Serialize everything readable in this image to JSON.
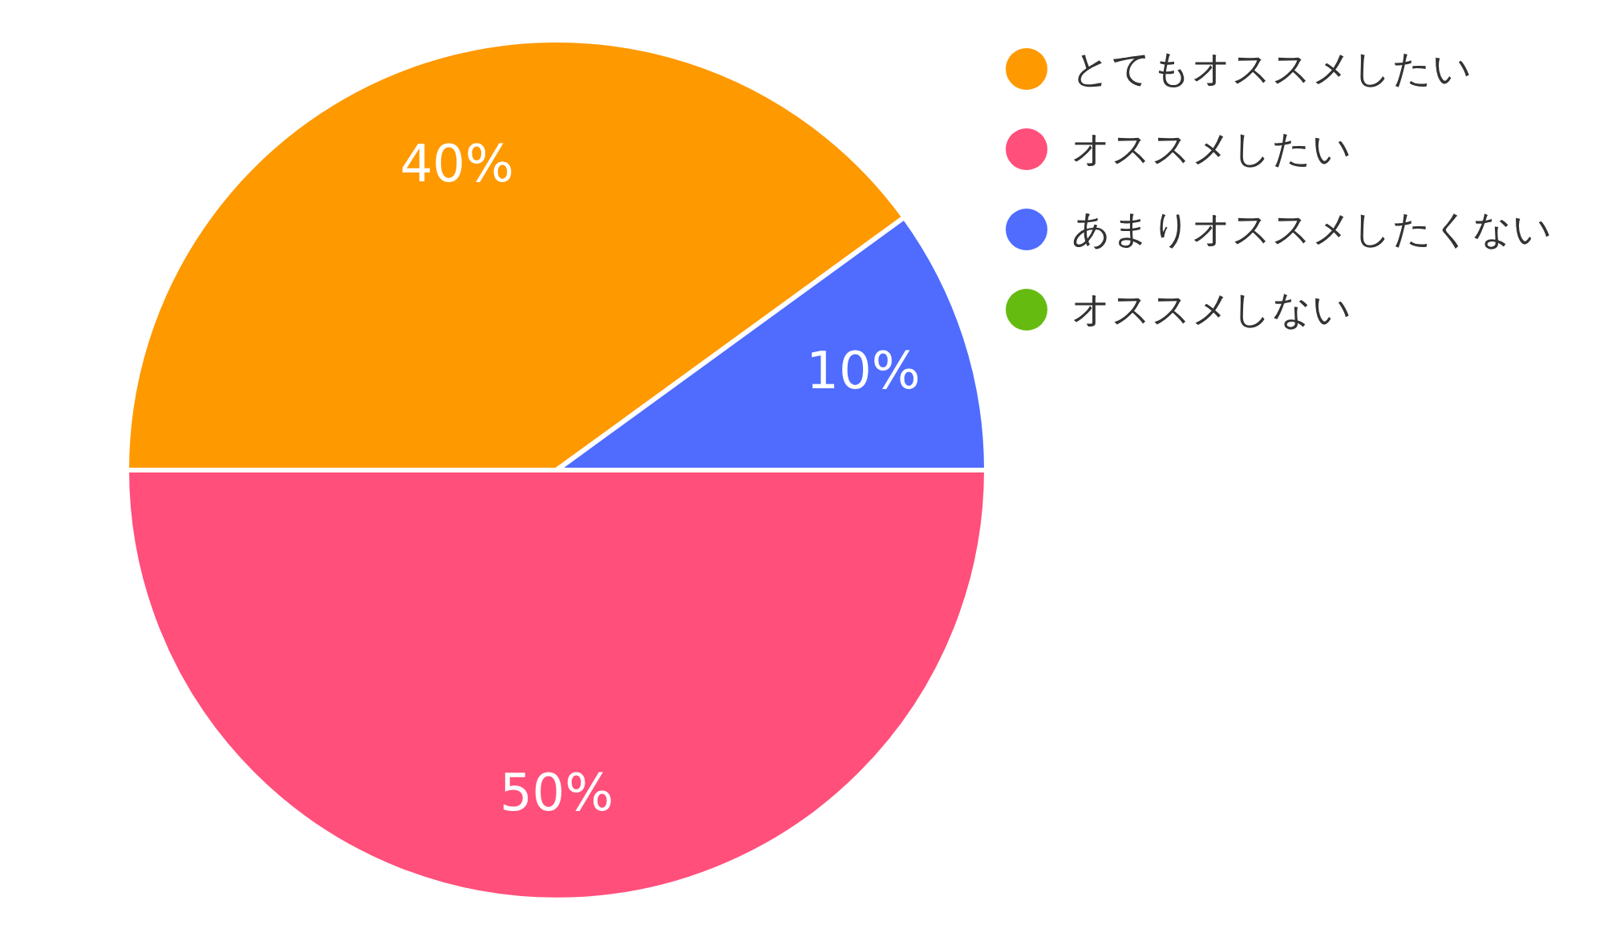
{
  "chart_data": {
    "type": "pie",
    "categories": [
      "とてもオススメしたい",
      "オススメしたい",
      "あまりオススメしたくない",
      "オススメしない"
    ],
    "values": [
      40,
      50,
      10,
      0
    ],
    "colors": [
      "#ff9900",
      "#ff4f7a",
      "#4f6cff",
      "#66bb11"
    ],
    "value_labels": [
      "40%",
      "50%",
      "10%",
      null
    ],
    "legend": "top right"
  }
}
